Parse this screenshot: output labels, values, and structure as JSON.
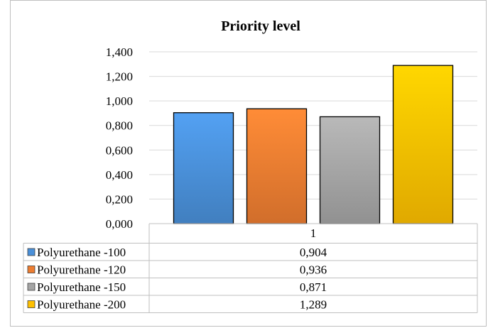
{
  "chart_data": {
    "type": "bar",
    "title": "Priority level",
    "categories": [
      "1"
    ],
    "ylim": [
      0,
      1.4
    ],
    "yticks": [
      "0,000",
      "0,200",
      "0,400",
      "0,600",
      "0,800",
      "1,000",
      "1,200",
      "1,400"
    ],
    "ytick_values": [
      0,
      0.2,
      0.4,
      0.6,
      0.8,
      1.0,
      1.2,
      1.4
    ],
    "grid": true,
    "legend": "data-table",
    "series": [
      {
        "name": "Polyurethane -100",
        "values": [
          0.904
        ],
        "label": "0,904",
        "color": "#4a90d9"
      },
      {
        "name": "Polyurethane -120",
        "values": [
          0.936
        ],
        "label": "0,936",
        "color": "#ed7d31"
      },
      {
        "name": "Polyurethane -150",
        "values": [
          0.871
        ],
        "label": "0,871",
        "color": "#a5a5a5"
      },
      {
        "name": "Polyurethane -200",
        "values": [
          1.289
        ],
        "label": "1,289",
        "color": "#ffc000"
      }
    ]
  }
}
